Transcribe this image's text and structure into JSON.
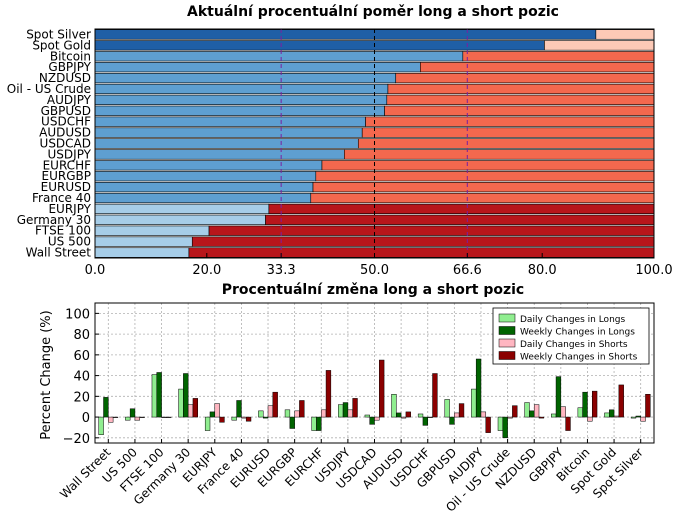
{
  "chart_data": [
    {
      "type": "bar",
      "orientation": "horizontal",
      "stacked": true,
      "title": "Aktuální procentuální poměr long a short pozic",
      "categories": [
        "Spot Silver",
        "Spot Gold",
        "Bitcoin",
        "GBPJPY",
        "NZDUSD",
        "Oil - US Crude",
        "AUDJPY",
        "GBPUSD",
        "USDCHF",
        "AUDUSD",
        "USDCAD",
        "USDJPY",
        "EURCHF",
        "EURGBP",
        "EURUSD",
        "France 40",
        "EURJPY",
        "Germany 30",
        "FTSE 100",
        "US 500",
        "Wall Street"
      ],
      "long_values": [
        89.6,
        80.4,
        65.8,
        58.2,
        53.8,
        52.4,
        52.2,
        51.8,
        48.4,
        47.8,
        47.1,
        44.6,
        40.6,
        39.5,
        39.0,
        38.6,
        31.1,
        30.5,
        20.4,
        17.4,
        16.8
      ],
      "xlim": [
        0,
        100
      ],
      "xticks": [
        "0.0",
        "20.0",
        "33.3",
        "50.0",
        "66.6",
        "80.0",
        "100.0"
      ],
      "xtick_values": [
        0,
        20,
        33.3,
        50,
        66.6,
        80,
        100
      ],
      "highlight_ticks": [
        "33.3",
        "66.6"
      ],
      "colors": {
        "long_strong": "#1f5fa6",
        "long_mid": "#5e9fd1",
        "long_light": "#a6cde8",
        "short_light": "#fcc9b6",
        "short_mid": "#f3684e",
        "short_strong": "#b8161b",
        "highlight": "#7a1fa2"
      }
    },
    {
      "type": "bar",
      "title": "Procentuální změna long a short pozic",
      "ylabel": "Percent Change (%)",
      "ylim": [
        -25,
        110
      ],
      "yticks": [
        "−20",
        "0",
        "20",
        "40",
        "60",
        "80",
        "100"
      ],
      "ytick_values": [
        -20,
        0,
        20,
        40,
        60,
        80,
        100
      ],
      "grid": true,
      "legend_position": "top-right",
      "categories": [
        "Wall Street",
        "US 500",
        "FTSE 100",
        "Germany 30",
        "EURJPY",
        "France 40",
        "EURUSD",
        "EURGBP",
        "EURCHF",
        "USDJPY",
        "USDCAD",
        "AUDUSD",
        "USDCHF",
        "GBPUSD",
        "AUDJPY",
        "Oil - US Crude",
        "NZDUSD",
        "GBPJPY",
        "Bitcoin",
        "Spot Gold",
        "Spot Silver"
      ],
      "series": [
        {
          "name": "Daily Changes in Longs",
          "color": "#90ee90",
          "values": [
            -17,
            -3,
            41,
            27,
            -13,
            -3,
            6,
            7,
            -13,
            12,
            2,
            22,
            3,
            17,
            27,
            -13,
            14,
            3,
            9,
            4,
            -1
          ]
        },
        {
          "name": "Weekly Changes in Longs",
          "color": "#006400",
          "values": [
            19,
            8,
            43,
            42,
            5,
            16,
            -1,
            -11,
            -13,
            14,
            -7,
            4,
            -8,
            -7,
            56,
            -20,
            6,
            39,
            24,
            7,
            1
          ]
        },
        {
          "name": "Daily Changes in Shorts",
          "color": "#ffb6c1",
          "values": [
            -5,
            -3,
            0,
            12,
            13,
            -1,
            11,
            6,
            7,
            7,
            -3,
            -1,
            0,
            4,
            5,
            -1,
            12,
            10,
            -4,
            1,
            -4
          ]
        },
        {
          "name": "Weekly Changes in Shorts",
          "color": "#8b0000",
          "values": [
            0,
            0,
            0,
            18,
            -5,
            -4,
            24,
            16,
            45,
            18,
            55,
            5,
            42,
            13,
            -15,
            11,
            -1,
            -13,
            25,
            31,
            22
          ]
        }
      ]
    }
  ]
}
